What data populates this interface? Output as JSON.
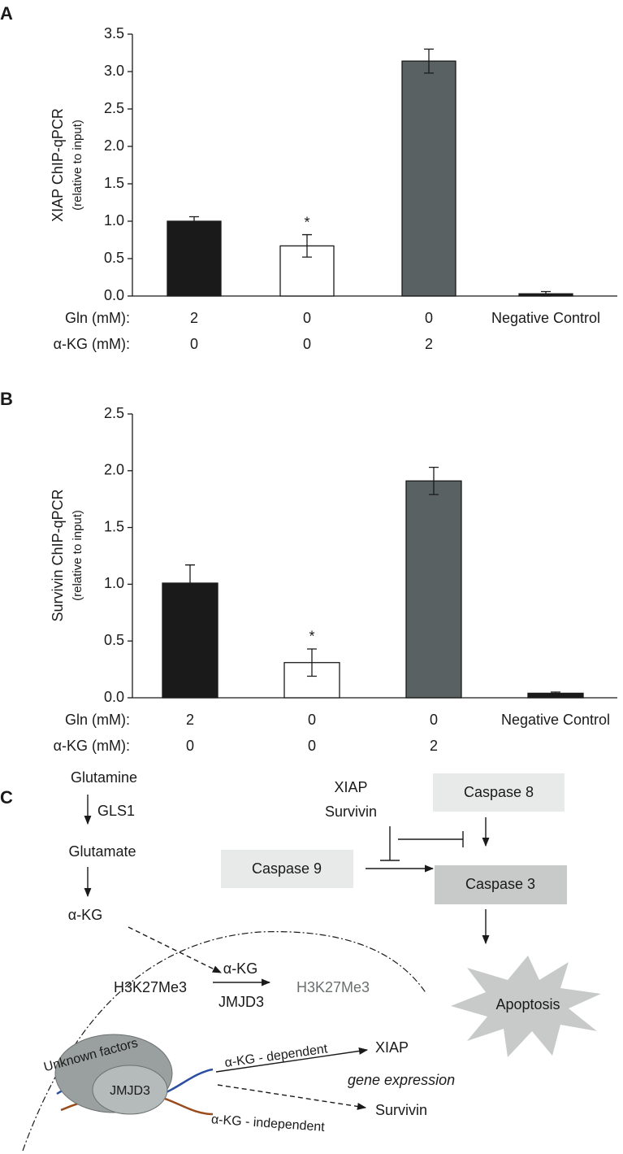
{
  "chart_data": [
    {
      "type": "bar",
      "panel_label": "A",
      "ylabel": "XIAP ChIP-qPCR",
      "ylabel_sub": "(relative to input)",
      "row_labels": [
        "Gln (mM):",
        "α-KG (mM):"
      ],
      "categories": [
        "2",
        "0",
        "0",
        "Negative Control"
      ],
      "categories2": [
        "0",
        "0",
        "2",
        null
      ],
      "values": [
        1.0,
        0.67,
        3.14,
        0.03
      ],
      "errors": [
        0.06,
        0.15,
        0.16,
        0.03
      ],
      "colors": [
        "#1a1a1a",
        "#ffffff",
        "#5a6162",
        "#1a1a1a"
      ],
      "annotations": [
        null,
        "*",
        null,
        null
      ],
      "ylim": [
        0,
        3.5
      ],
      "yticks": [
        {
          "value": 0,
          "label": "0.0"
        },
        0.5,
        {
          "value": 1,
          "label": "1.0"
        },
        1.5,
        {
          "value": 2,
          "label": "2.0"
        },
        2.5,
        {
          "value": 3,
          "label": "3.0"
        },
        3.5
      ]
    },
    {
      "type": "bar",
      "panel_label": "B",
      "ylabel": "Survivin ChIP-qPCR",
      "ylabel_sub": "(relative to input)",
      "row_labels": [
        "Gln (mM):",
        "α-KG (mM):"
      ],
      "categories": [
        "2",
        "0",
        "0",
        "Negative Control"
      ],
      "categories2": [
        "0",
        "0",
        "2",
        null
      ],
      "values": [
        1.01,
        0.31,
        1.91,
        0.04
      ],
      "errors": [
        0.16,
        0.12,
        0.12,
        0.01
      ],
      "colors": [
        "#1a1a1a",
        "#ffffff",
        "#5a6162",
        "#1a1a1a"
      ],
      "annotations": [
        null,
        "*",
        null,
        null
      ],
      "ylim": [
        0,
        2.5
      ],
      "yticks": [
        {
          "value": 0,
          "label": "0.0"
        },
        0.5,
        {
          "value": 1,
          "label": "1.0"
        },
        1.5,
        {
          "value": 2,
          "label": "2.0"
        },
        2.5
      ]
    }
  ],
  "diagram": {
    "panel_label": "C",
    "glutamine": "Glutamine",
    "gls1": "GLS1",
    "glutamate": "Glutamate",
    "akg": "α-KG",
    "h3k_left": "H3K27Me3",
    "akg_cofactor": "α-KG",
    "jmjd3": "JMJD3",
    "h3k_right": "H3K27Me3",
    "xiap": "XIAP",
    "survivin": "Survivin",
    "caspase8": "Caspase 8",
    "caspase9": "Caspase 9",
    "caspase3": "Caspase 3",
    "apoptosis": "Apoptosis",
    "unknown_factors": "Unknown factors",
    "jmjd3_complex": "JMJD3",
    "akg_dependent": "α-KG - dependent",
    "xiap_target": "XIAP",
    "gene_expression": "gene expression",
    "akg_independent": "α-KG - independent",
    "survivin_target": "Survivin"
  }
}
